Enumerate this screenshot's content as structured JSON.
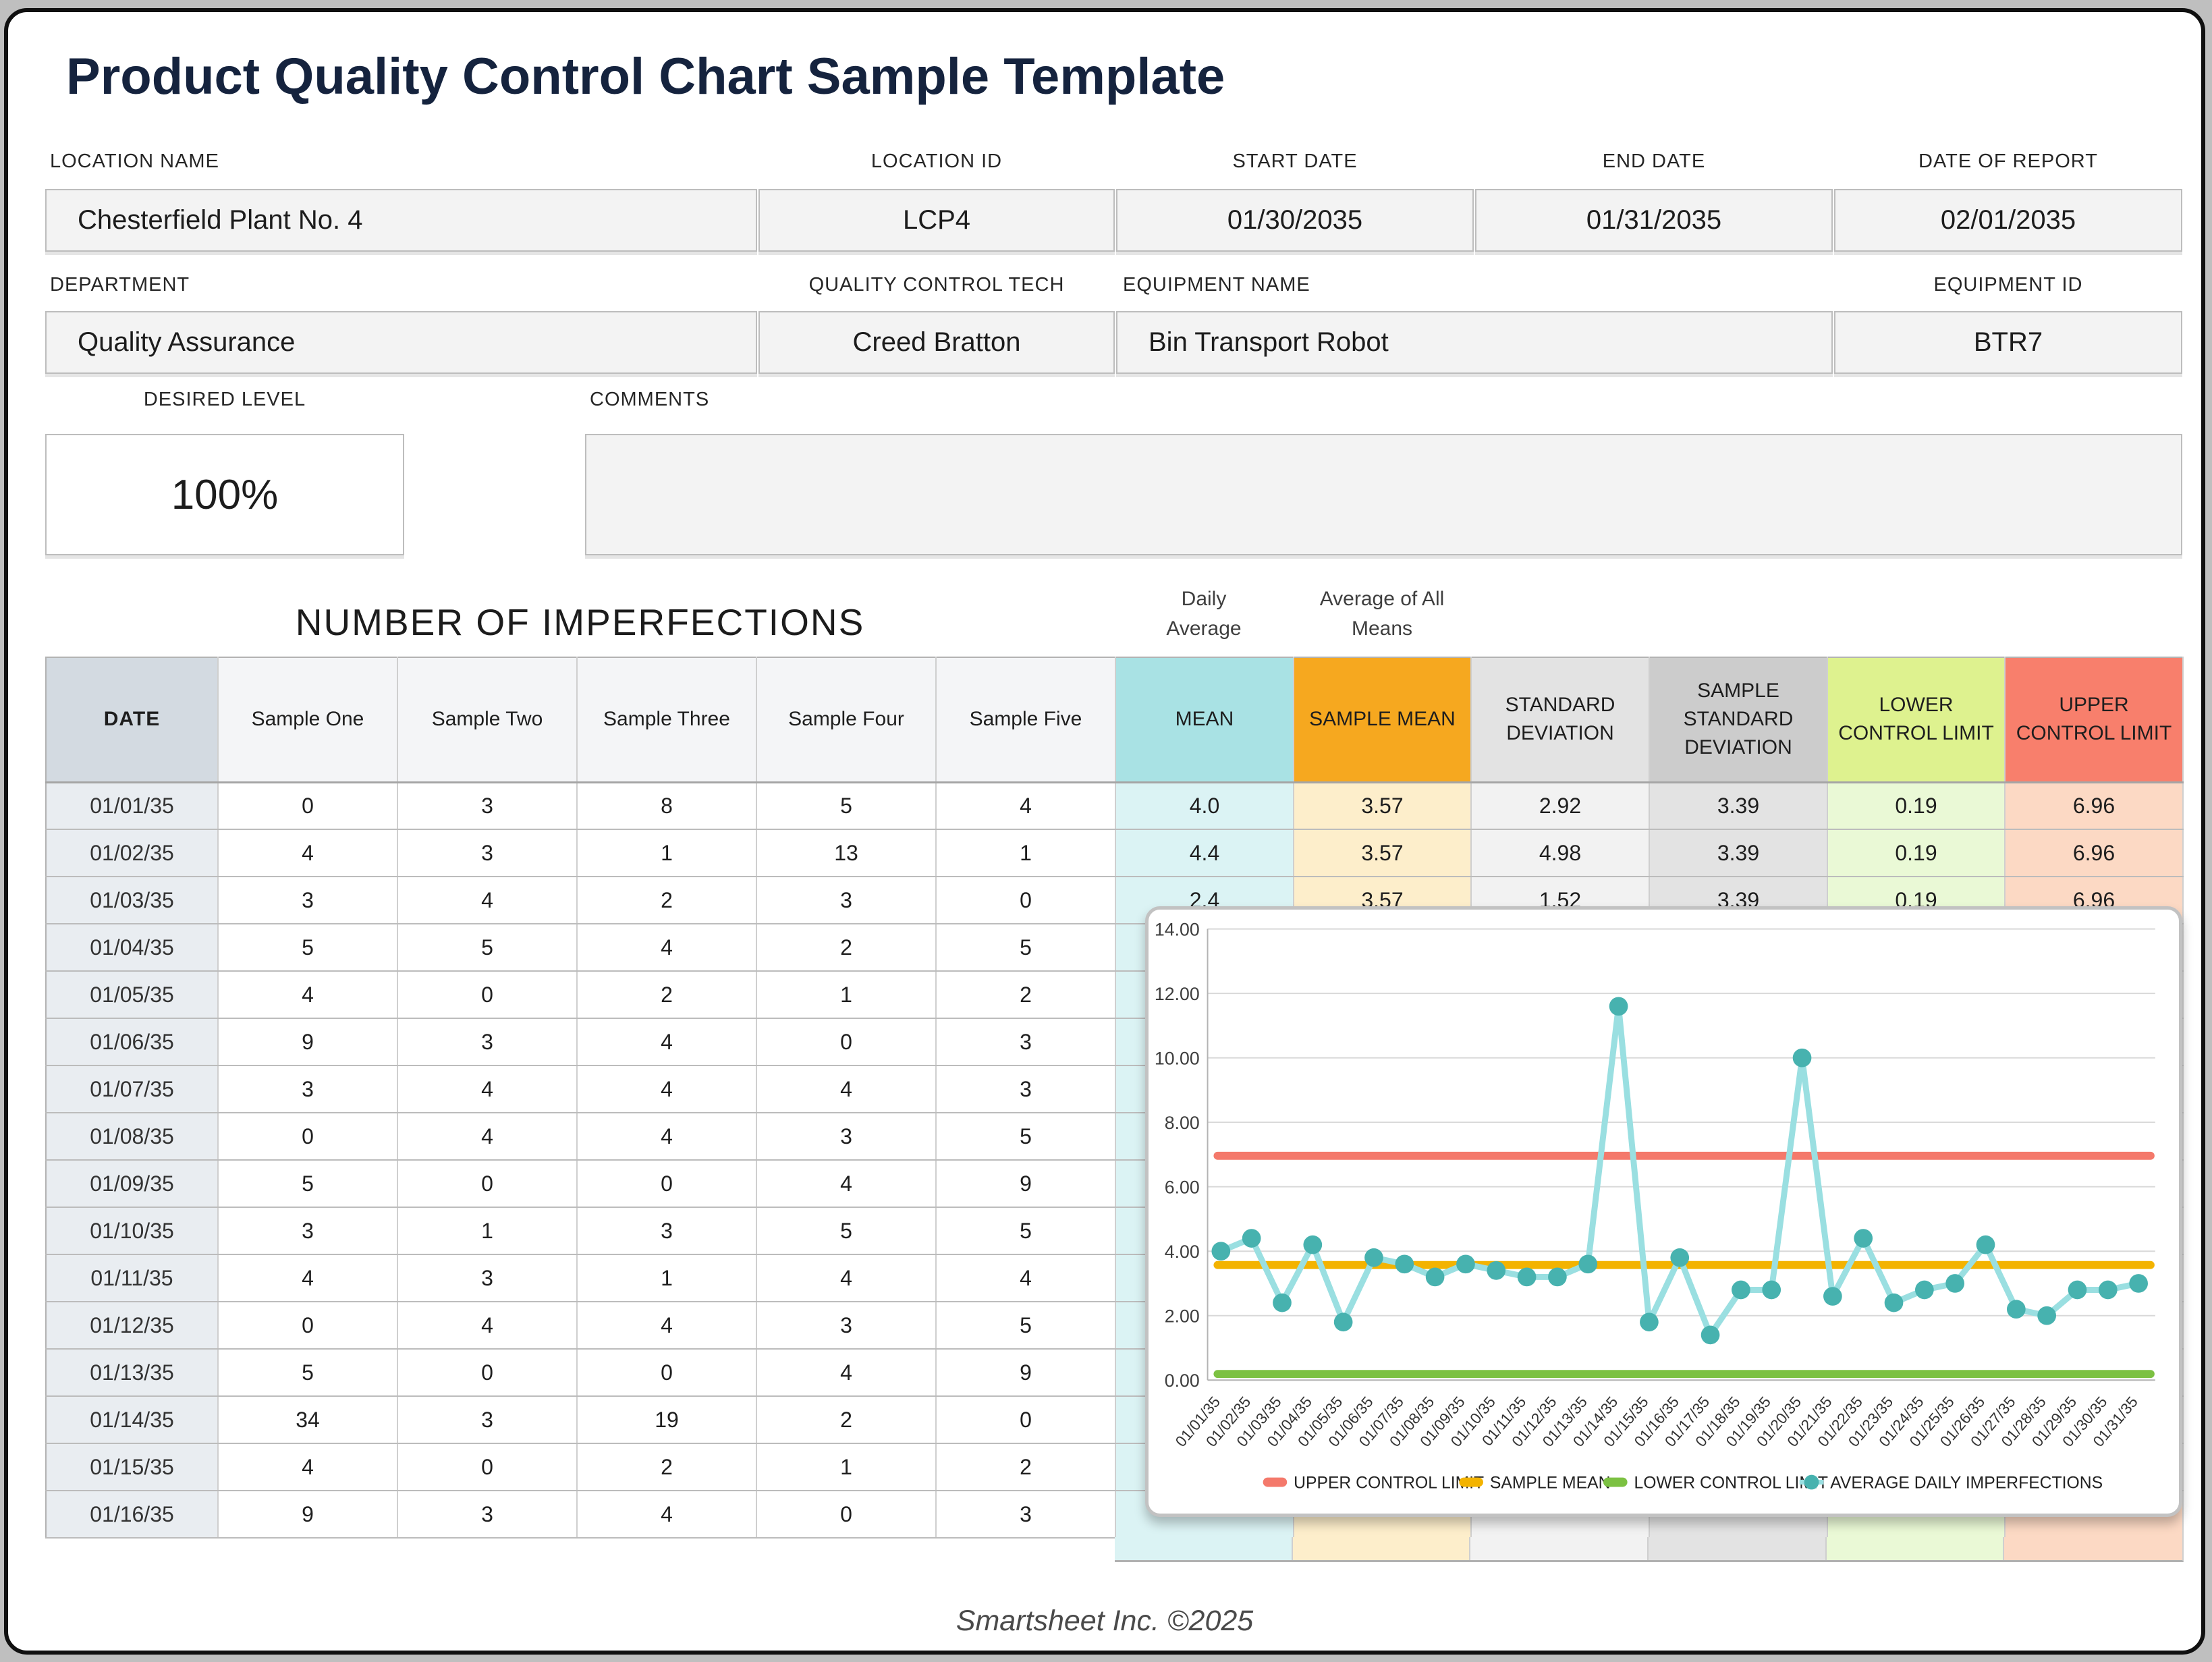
{
  "header": {
    "title": "Product Quality Control Chart Sample Template"
  },
  "fields": {
    "location_name": {
      "label": "LOCATION NAME",
      "value": "Chesterfield Plant No. 4"
    },
    "location_id": {
      "label": "LOCATION ID",
      "value": "LCP4"
    },
    "start_date": {
      "label": "START DATE",
      "value": "01/30/2035"
    },
    "end_date": {
      "label": "END DATE",
      "value": "01/31/2035"
    },
    "date_of_report": {
      "label": "DATE OF REPORT",
      "value": "02/01/2035"
    },
    "department": {
      "label": "DEPARTMENT",
      "value": "Quality Assurance"
    },
    "quality_control_tech": {
      "label": "QUALITY CONTROL TECH",
      "value": "Creed Bratton"
    },
    "equipment_name": {
      "label": "EQUIPMENT NAME",
      "value": "Bin Transport Robot"
    },
    "equipment_id": {
      "label": "EQUIPMENT ID",
      "value": "BTR7"
    },
    "desired_level": {
      "label": "DESIRED LEVEL",
      "value": "100%"
    },
    "comments": {
      "label": "COMMENTS",
      "value": ""
    }
  },
  "table": {
    "title": "NUMBER OF IMPERFECTIONS",
    "annotations": {
      "mean": "Daily Average",
      "sample_mean": "Average of All Means"
    },
    "columns": [
      {
        "key": "date",
        "label": "DATE",
        "header_color": "#d3dae1",
        "cell_color": "#e9edf1",
        "bold": true
      },
      {
        "key": "sample1",
        "label": "Sample One",
        "header_color": "#f4f5f7",
        "cell_color": "#ffffff"
      },
      {
        "key": "sample2",
        "label": "Sample Two",
        "header_color": "#f4f5f7",
        "cell_color": "#ffffff"
      },
      {
        "key": "sample3",
        "label": "Sample Three",
        "header_color": "#f4f5f7",
        "cell_color": "#ffffff"
      },
      {
        "key": "sample4",
        "label": "Sample Four",
        "header_color": "#f4f5f7",
        "cell_color": "#ffffff"
      },
      {
        "key": "sample5",
        "label": "Sample Five",
        "header_color": "#f4f5f7",
        "cell_color": "#ffffff"
      },
      {
        "key": "mean",
        "label": "MEAN",
        "header_color": "#a9e2e4",
        "cell_color": "#dbf3f4"
      },
      {
        "key": "sample_mean",
        "label": "SAMPLE MEAN",
        "header_color": "#f6a81f",
        "cell_color": "#fdeecb"
      },
      {
        "key": "std_dev",
        "label": "STANDARD DEVIATION",
        "header_color": "#e3e3e3",
        "cell_color": "#f2f2f2"
      },
      {
        "key": "sample_std",
        "label": "SAMPLE STANDARD DEVIATION",
        "header_color": "#cccccc",
        "cell_color": "#e3e3e3"
      },
      {
        "key": "lcl",
        "label": "LOWER CONTROL LIMIT",
        "header_color": "#def28f",
        "cell_color": "#eaf9d6"
      },
      {
        "key": "ucl",
        "label": "UPPER CONTROL LIMIT",
        "header_color": "#f87f6c",
        "cell_color": "#fcd9c4"
      }
    ],
    "rows": [
      [
        "01/01/35",
        "0",
        "3",
        "8",
        "5",
        "4",
        "4.0",
        "3.57",
        "2.92",
        "3.39",
        "0.19",
        "6.96"
      ],
      [
        "01/02/35",
        "4",
        "3",
        "1",
        "13",
        "1",
        "4.4",
        "3.57",
        "4.98",
        "3.39",
        "0.19",
        "6.96"
      ],
      [
        "01/03/35",
        "3",
        "4",
        "2",
        "3",
        "0",
        "2.4",
        "3.57",
        "1.52",
        "3.39",
        "0.19",
        "6.96"
      ],
      [
        "01/04/35",
        "5",
        "5",
        "4",
        "2",
        "5",
        "",
        "",
        "",
        "",
        "",
        ""
      ],
      [
        "01/05/35",
        "4",
        "0",
        "2",
        "1",
        "2",
        "",
        "",
        "",
        "",
        "",
        ""
      ],
      [
        "01/06/35",
        "9",
        "3",
        "4",
        "0",
        "3",
        "",
        "",
        "",
        "",
        "",
        ""
      ],
      [
        "01/07/35",
        "3",
        "4",
        "4",
        "4",
        "3",
        "",
        "",
        "",
        "",
        "",
        ""
      ],
      [
        "01/08/35",
        "0",
        "4",
        "4",
        "3",
        "5",
        "",
        "",
        "",
        "",
        "",
        ""
      ],
      [
        "01/09/35",
        "5",
        "0",
        "0",
        "4",
        "9",
        "",
        "",
        "",
        "",
        "",
        ""
      ],
      [
        "01/10/35",
        "3",
        "1",
        "3",
        "5",
        "5",
        "",
        "",
        "",
        "",
        "",
        ""
      ],
      [
        "01/11/35",
        "4",
        "3",
        "1",
        "4",
        "4",
        "",
        "",
        "",
        "",
        "",
        ""
      ],
      [
        "01/12/35",
        "0",
        "4",
        "4",
        "3",
        "5",
        "",
        "",
        "",
        "",
        "",
        ""
      ],
      [
        "01/13/35",
        "5",
        "0",
        "0",
        "4",
        "9",
        "",
        "",
        "",
        "",
        "",
        ""
      ],
      [
        "01/14/35",
        "34",
        "3",
        "19",
        "2",
        "0",
        "",
        "",
        "",
        "",
        "",
        ""
      ],
      [
        "01/15/35",
        "4",
        "0",
        "2",
        "1",
        "2",
        "",
        "",
        "",
        "",
        "",
        ""
      ],
      [
        "01/16/35",
        "9",
        "3",
        "4",
        "0",
        "3",
        "",
        "",
        "",
        "",
        "",
        ""
      ]
    ]
  },
  "chart_data": {
    "type": "line",
    "title": "",
    "xlabel": "",
    "ylabel": "",
    "ylim": [
      0,
      14
    ],
    "ytick_step": 2,
    "grid": true,
    "legend_position": "bottom",
    "x": [
      "01/01/35",
      "01/02/35",
      "01/03/35",
      "01/04/35",
      "01/05/35",
      "01/06/35",
      "01/07/35",
      "01/08/35",
      "01/09/35",
      "01/10/35",
      "01/11/35",
      "01/12/35",
      "01/13/35",
      "01/14/35",
      "01/15/35",
      "01/16/35",
      "01/17/35",
      "01/18/35",
      "01/19/35",
      "01/20/35",
      "01/21/35",
      "01/22/35",
      "01/23/35",
      "01/24/35",
      "01/25/35",
      "01/26/35",
      "01/27/35",
      "01/28/35",
      "01/29/35",
      "01/30/35",
      "01/31/35"
    ],
    "series": [
      {
        "name": "UPPER CONTROL LIMIT",
        "type": "constant",
        "value": 6.96,
        "color": "#f4796b"
      },
      {
        "name": "SAMPLE MEAN",
        "type": "constant",
        "value": 3.57,
        "color": "#f3b300"
      },
      {
        "name": "LOWER CONTROL LIMIT",
        "type": "constant",
        "value": 0.19,
        "color": "#7cc142"
      },
      {
        "name": "AVERAGE DAILY IMPERFECTIONS",
        "type": "line-markers",
        "line_color": "#9adfe1",
        "marker_color": "#47b2af",
        "values": [
          4.0,
          4.4,
          2.4,
          4.2,
          1.8,
          3.8,
          3.6,
          3.2,
          3.6,
          3.4,
          3.2,
          3.2,
          3.6,
          11.6,
          1.8,
          3.8,
          1.4,
          2.8,
          2.8,
          10.0,
          2.6,
          4.4,
          2.4,
          2.8,
          3.0,
          4.2,
          2.2,
          2.0,
          2.8,
          2.8,
          3.0
        ]
      }
    ]
  },
  "footer": {
    "text": "Smartsheet Inc. ©2025"
  }
}
